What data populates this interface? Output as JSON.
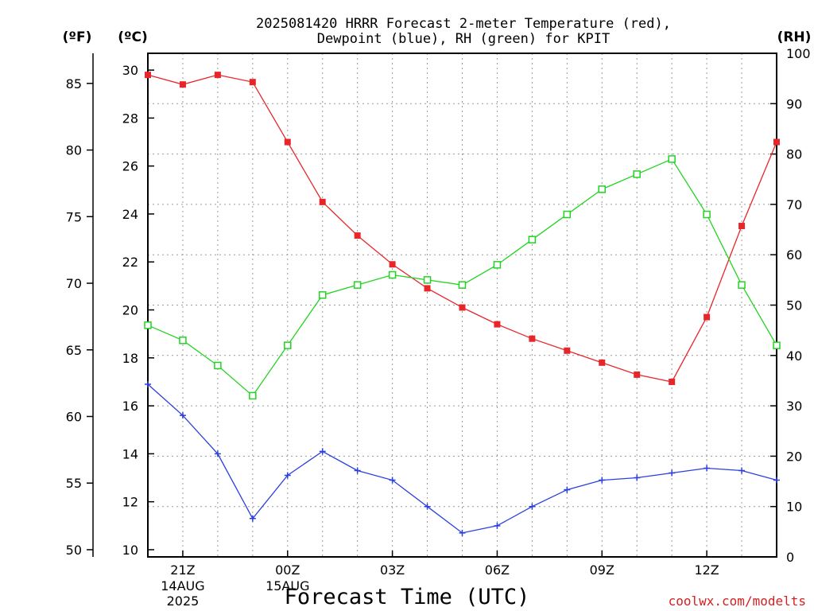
{
  "chart_data": {
    "type": "line",
    "title_line1": "2025081420 HRRR Forecast 2-meter Temperature (red),",
    "title_line2": "Dewpoint (blue), RH (green) for KPIT",
    "xlabel": "Forecast Time (UTC)",
    "unit_f": "(ºF)",
    "unit_c": "(ºC)",
    "unit_rh": "(RH)",
    "credit": "coolwx.com/modelts",
    "grid": true,
    "x_hours_utc": [
      "20Z",
      "21Z",
      "22Z",
      "23Z",
      "00Z",
      "01Z",
      "02Z",
      "03Z",
      "04Z",
      "05Z",
      "06Z",
      "07Z",
      "08Z",
      "09Z",
      "10Z",
      "11Z",
      "12Z",
      "13Z",
      "14Z"
    ],
    "x_ticks": [
      {
        "label": "21Z",
        "sub1": "14AUG",
        "sub2": "2025"
      },
      {
        "label": "00Z",
        "sub1": "15AUG",
        "sub2": ""
      },
      {
        "label": "03Z",
        "sub1": "",
        "sub2": ""
      },
      {
        "label": "06Z",
        "sub1": "",
        "sub2": ""
      },
      {
        "label": "09Z",
        "sub1": "",
        "sub2": ""
      },
      {
        "label": "12Z",
        "sub1": "",
        "sub2": ""
      }
    ],
    "x_tick_hours": [
      21,
      24,
      27,
      30,
      33,
      36
    ],
    "y_left_c": {
      "range": [
        9.7,
        30.7
      ],
      "ticks": [
        "10",
        "12",
        "14",
        "16",
        "18",
        "20",
        "22",
        "24",
        "26",
        "28",
        "30"
      ]
    },
    "y_left_f": {
      "ticks": [
        "50",
        "55",
        "60",
        "65",
        "70",
        "75",
        "80",
        "85"
      ]
    },
    "y_right_rh": {
      "range": [
        0,
        100
      ],
      "ticks": [
        "0",
        "10",
        "20",
        "30",
        "40",
        "50",
        "60",
        "70",
        "80",
        "90",
        "100"
      ]
    },
    "series": [
      {
        "color": "#e8262a",
        "marker": "filled-square",
        "axis": "celsius",
        "values": [
          29.8,
          29.4,
          29.8,
          29.5,
          27.0,
          24.5,
          23.1,
          21.9,
          20.9,
          20.1,
          19.4,
          18.8,
          18.3,
          17.8,
          17.3,
          17.0,
          19.7,
          23.5,
          27.0
        ]
      },
      {
        "color": "#2a3fe0",
        "marker": "plus",
        "axis": "celsius",
        "values": [
          16.9,
          15.6,
          14.0,
          11.3,
          13.1,
          14.1,
          13.3,
          12.9,
          11.8,
          10.7,
          11.0,
          11.8,
          12.5,
          12.9,
          13.0,
          13.2,
          13.4,
          13.3,
          12.9
        ]
      },
      {
        "color": "#22d422",
        "marker": "open-square",
        "axis": "rh",
        "values": [
          46,
          43,
          38,
          32,
          42,
          52,
          54,
          56,
          55,
          54,
          58,
          63,
          68,
          73,
          76,
          79,
          68,
          54,
          42
        ]
      }
    ]
  }
}
